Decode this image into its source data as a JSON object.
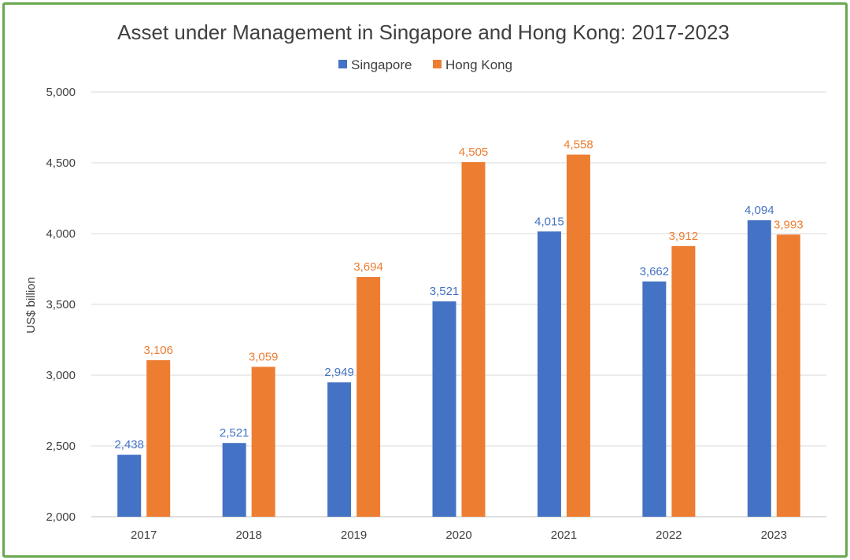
{
  "chart_data": {
    "type": "bar",
    "title": "Asset under Management in Singapore and Hong Kong: 2017-2023",
    "xlabel": "",
    "ylabel": "US$ billion",
    "categories": [
      "2017",
      "2018",
      "2019",
      "2020",
      "2021",
      "2022",
      "2023"
    ],
    "series": [
      {
        "name": "Singapore",
        "color": "#4472c4",
        "values": [
          2438,
          2521,
          2949,
          3521,
          4015,
          3662,
          4094
        ],
        "labels": [
          "2,438",
          "2,521",
          "2,949",
          "3,521",
          "4,015",
          "3,662",
          "4,094"
        ]
      },
      {
        "name": "Hong Kong",
        "color": "#ed7d31",
        "values": [
          3106,
          3059,
          3694,
          4505,
          4558,
          3912,
          3993
        ],
        "labels": [
          "3,106",
          "3,059",
          "3,694",
          "4,505",
          "4,558",
          "3,912",
          "3,993"
        ]
      }
    ],
    "ylim": [
      2000,
      5000
    ],
    "yticks": [
      2000,
      2500,
      3000,
      3500,
      4000,
      4500,
      5000
    ],
    "ytick_labels": [
      "2,000",
      "2,500",
      "3,000",
      "3,500",
      "4,000",
      "4,500",
      "5,000"
    ],
    "grid": true,
    "legend_position": "top-center",
    "frame_color": "#6aa84f"
  }
}
